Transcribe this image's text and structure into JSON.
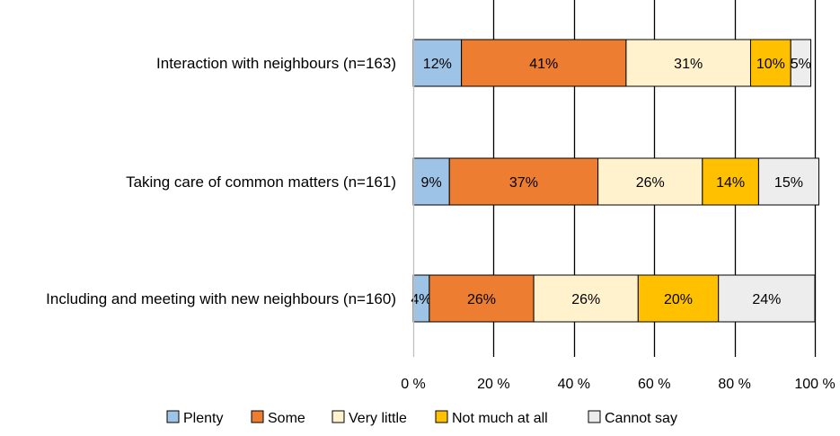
{
  "chart_data": {
    "type": "bar",
    "orientation": "horizontal",
    "stacked": true,
    "normalized": true,
    "title": "",
    "xlabel": "",
    "ylabel": "",
    "xlim": [
      0,
      100
    ],
    "grid": "vertical",
    "legend_position": "bottom",
    "categories": [
      "Interaction with neighbours (n=163)",
      "Taking care of common matters (n=161)",
      "Including and meeting with new neighbours (n=160)"
    ],
    "x_ticks": [
      0,
      20,
      40,
      60,
      80,
      100
    ],
    "x_tick_labels": [
      "0 %",
      "20 %",
      "40 %",
      "60 %",
      "80 %",
      "100 %"
    ],
    "series": [
      {
        "name": "Plenty",
        "color": "#9DC3E6",
        "values": [
          12,
          9,
          4
        ],
        "labels": [
          "12%",
          "9%",
          "4%"
        ]
      },
      {
        "name": "Some",
        "color": "#ED7D31",
        "values": [
          41,
          37,
          26
        ],
        "labels": [
          "41%",
          "37%",
          "26%"
        ]
      },
      {
        "name": "Very little",
        "color": "#FFF2CC",
        "values": [
          31,
          26,
          26
        ],
        "labels": [
          "31%",
          "26%",
          "26%"
        ]
      },
      {
        "name": "Not much at all",
        "color": "#FFC000",
        "values": [
          10,
          14,
          20
        ],
        "labels": [
          "10%",
          "14%",
          "20%"
        ]
      },
      {
        "name": "Cannot say",
        "color": "#EDEDED",
        "values": [
          5,
          15,
          24
        ],
        "labels": [
          "5%",
          "15%",
          "24%"
        ]
      }
    ]
  }
}
